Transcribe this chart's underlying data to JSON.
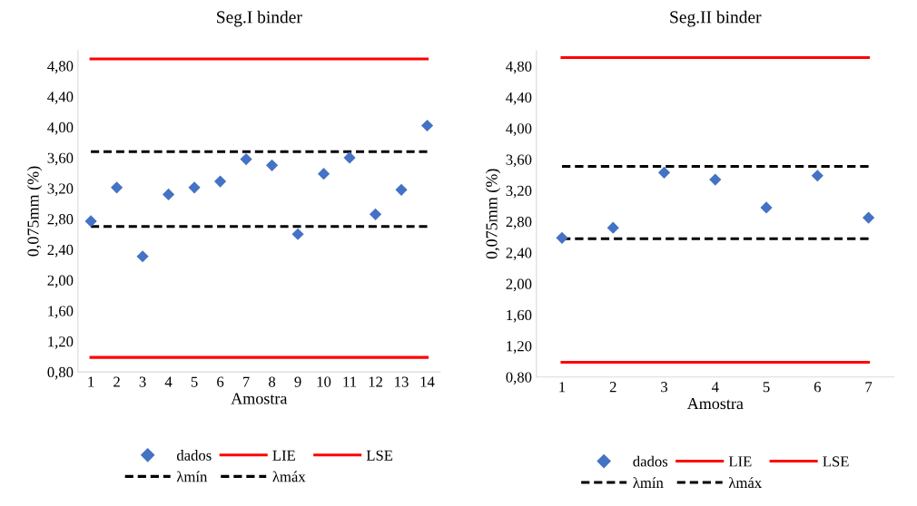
{
  "chart_data": [
    {
      "type": "scatter",
      "title": "Seg.I binder",
      "xlabel": "Amostra",
      "ylabel": "0,075mm (%)",
      "categories": [
        "1",
        "2",
        "3",
        "4",
        "5",
        "6",
        "7",
        "8",
        "9",
        "10",
        "11",
        "12",
        "13",
        "14"
      ],
      "ylim": [
        0.8,
        5.0
      ],
      "yticks": [
        {
          "value": 0.8,
          "label": "0,80"
        },
        {
          "value": 1.2,
          "label": "1,20"
        },
        {
          "value": 1.6,
          "label": "1,60"
        },
        {
          "value": 2.0,
          "label": "2,00"
        },
        {
          "value": 2.4,
          "label": "2,40"
        },
        {
          "value": 2.8,
          "label": "2,80"
        },
        {
          "value": 3.2,
          "label": "3,20"
        },
        {
          "value": 3.6,
          "label": "3,60"
        },
        {
          "value": 4.0,
          "label": "4,00"
        },
        {
          "value": 4.4,
          "label": "4,40"
        },
        {
          "value": 4.8,
          "label": "4,80"
        }
      ],
      "grid": false,
      "legend": "bottom",
      "series": [
        {
          "name": "dados",
          "marker": "diamond",
          "color": "#4472c4",
          "values": [
            2.77,
            3.21,
            2.31,
            3.12,
            3.21,
            3.29,
            3.58,
            3.5,
            2.6,
            3.39,
            3.6,
            2.86,
            3.18,
            4.02
          ]
        },
        {
          "name": "LIE",
          "type": "line",
          "line_style": "solid",
          "color": "#ff0000",
          "values": [
            0.99,
            0.99,
            0.99,
            0.99,
            0.99,
            0.99,
            0.99,
            0.99,
            0.99,
            0.99,
            0.99,
            0.99,
            0.99,
            0.99
          ]
        },
        {
          "name": "LSE",
          "type": "line",
          "line_style": "solid",
          "color": "#ff0000",
          "values": [
            4.89,
            4.89,
            4.89,
            4.89,
            4.89,
            4.89,
            4.89,
            4.89,
            4.89,
            4.89,
            4.89,
            4.89,
            4.89,
            4.89
          ]
        },
        {
          "name": "λmín",
          "type": "line",
          "line_style": "dashed",
          "color": "#000000",
          "values": [
            2.7,
            2.7,
            2.7,
            2.7,
            2.7,
            2.7,
            2.7,
            2.7,
            2.7,
            2.7,
            2.7,
            2.7,
            2.7,
            2.7
          ]
        },
        {
          "name": "λmáx",
          "type": "line",
          "line_style": "dashed",
          "color": "#000000",
          "values": [
            3.68,
            3.68,
            3.68,
            3.68,
            3.68,
            3.68,
            3.68,
            3.68,
            3.68,
            3.68,
            3.68,
            3.68,
            3.68,
            3.68
          ]
        }
      ]
    },
    {
      "type": "scatter",
      "title": "Seg.II binder",
      "xlabel": "Amostra",
      "ylabel": "0,075mm (%)",
      "categories": [
        "1",
        "2",
        "3",
        "4",
        "5",
        "6",
        "7"
      ],
      "ylim": [
        0.8,
        5.0
      ],
      "yticks": [
        {
          "value": 0.8,
          "label": "0,80"
        },
        {
          "value": 1.2,
          "label": "1,20"
        },
        {
          "value": 1.6,
          "label": "1,60"
        },
        {
          "value": 2.0,
          "label": "2,00"
        },
        {
          "value": 2.4,
          "label": "2,40"
        },
        {
          "value": 2.8,
          "label": "2,80"
        },
        {
          "value": 3.2,
          "label": "3,20"
        },
        {
          "value": 3.6,
          "label": "3,60"
        },
        {
          "value": 4.0,
          "label": "4,00"
        },
        {
          "value": 4.4,
          "label": "4,40"
        },
        {
          "value": 4.8,
          "label": "4,80"
        }
      ],
      "grid": false,
      "legend": "bottom",
      "series": [
        {
          "name": "dados",
          "marker": "diamond",
          "color": "#4472c4",
          "values": [
            2.59,
            2.72,
            3.43,
            3.34,
            2.98,
            3.39,
            2.85
          ]
        },
        {
          "name": "LIE",
          "type": "line",
          "line_style": "solid",
          "color": "#ff0000",
          "values": [
            0.99,
            0.99,
            0.99,
            0.99,
            0.99,
            0.99,
            0.99
          ]
        },
        {
          "name": "LSE",
          "type": "line",
          "line_style": "solid",
          "color": "#ff0000",
          "values": [
            4.91,
            4.91,
            4.91,
            4.91,
            4.91,
            4.91,
            4.91
          ]
        },
        {
          "name": "λmín",
          "type": "line",
          "line_style": "dashed",
          "color": "#000000",
          "values": [
            2.58,
            2.58,
            2.58,
            2.58,
            2.58,
            2.58,
            2.58
          ]
        },
        {
          "name": "λmáx",
          "type": "line",
          "line_style": "dashed",
          "color": "#000000",
          "values": [
            3.51,
            3.51,
            3.51,
            3.51,
            3.51,
            3.51,
            3.51
          ]
        }
      ]
    }
  ]
}
